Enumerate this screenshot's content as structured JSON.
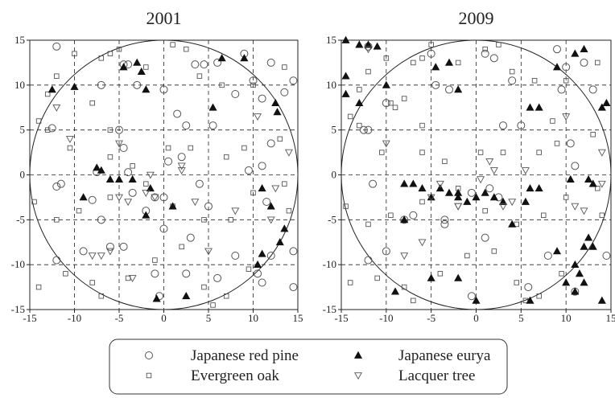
{
  "chart_data": [
    {
      "type": "scatter",
      "title": "2001",
      "xlim": [
        -15,
        15
      ],
      "ylim": [
        -15,
        15
      ],
      "xticks": [
        -15,
        -10,
        -5,
        0,
        5,
        10,
        15
      ],
      "yticks": [
        -15,
        -10,
        -5,
        0,
        5,
        10,
        15
      ],
      "grid": true,
      "series": [
        {
          "name": "Japanese red pine",
          "marker": "circle",
          "color": "#555",
          "x": [
            -12,
            -5,
            -12.5,
            -4.5,
            -4,
            3.5,
            4.5,
            6,
            9,
            -7,
            -3,
            0,
            1.5,
            2.5,
            5.5,
            8,
            10,
            12,
            14.5,
            11,
            13.5,
            -11.5,
            -12,
            -4.5,
            -4,
            -7.5,
            -8,
            -3.5,
            0.5,
            2,
            4,
            5,
            9.5,
            11,
            11.5,
            12,
            -12,
            -9,
            -7,
            -6,
            -4.5,
            -2,
            -1,
            -0.5,
            0,
            3,
            2.5,
            6,
            8,
            10.5,
            11,
            12,
            14.5,
            14.5,
            0,
            -1
          ],
          "y": [
            14.3,
            5,
            5.2,
            12.3,
            12.3,
            12.3,
            12.3,
            12.5,
            13.5,
            10,
            10,
            9.5,
            6.8,
            5.5,
            5.5,
            9,
            10.5,
            12.5,
            10.5,
            8.5,
            9.2,
            -1,
            -1.3,
            3,
            0.3,
            0.3,
            -2.8,
            -2,
            1.5,
            2,
            -1,
            -3.5,
            0.5,
            1,
            -3,
            3.5,
            -9.5,
            -8.5,
            -5,
            -8,
            -8,
            -4,
            -11,
            -13.5,
            -6,
            -7,
            -11,
            -11.5,
            -9,
            -11,
            -12,
            -9,
            -12.5,
            -8.5,
            -2.5,
            -2.5
          ]
        },
        {
          "name": "Evergreen oak",
          "marker": "square",
          "color": "#555",
          "x": [
            -13,
            -12,
            -10,
            -8,
            -6,
            -5,
            -7,
            -2,
            1,
            2.5,
            4,
            6.5,
            10,
            13.5,
            -14,
            -13,
            -10.5,
            -6,
            -6,
            -3.5,
            3,
            0.5,
            7,
            9,
            13,
            -14.5,
            -12,
            -9.5,
            -6,
            -2,
            1,
            4.5,
            7.5,
            10,
            13.5,
            -14,
            -11,
            -8,
            -4,
            -1,
            2,
            4.5,
            7,
            9.5,
            14,
            -7,
            5.5
          ],
          "y": [
            9,
            11,
            13.5,
            8,
            13.5,
            14,
            13,
            12,
            14.5,
            14,
            11,
            10,
            10,
            12,
            6,
            5,
            3,
            5,
            2,
            1,
            3,
            3,
            2,
            3,
            4,
            -3,
            -5,
            -4,
            -2.5,
            -1,
            -3.5,
            -5,
            -5,
            -2,
            -1,
            -12.5,
            -11,
            -12,
            -11.5,
            -9.5,
            -8,
            -12.5,
            -13.5,
            -10.5,
            -4,
            -13.5,
            -14.5
          ]
        },
        {
          "name": "Japanese eurya",
          "marker": "up",
          "color": "#111",
          "x": [
            -12.5,
            -10,
            -4.5,
            -3,
            -2.5,
            -2,
            6.5,
            9,
            12.5,
            12.7,
            5.5,
            -7.5,
            -7,
            -6,
            -5,
            -3.5,
            -1.5,
            -9,
            -2,
            -0.8,
            2.5,
            1,
            11,
            12,
            11,
            13,
            13.5,
            10.5
          ],
          "y": [
            9.5,
            9.8,
            12,
            12.5,
            11.5,
            9.5,
            13,
            13,
            8,
            7,
            7.5,
            0.8,
            0.5,
            -0.5,
            -0.5,
            -0.5,
            -1.5,
            -2.5,
            -4.5,
            -13.8,
            -13.5,
            -3.5,
            -1.5,
            -3.5,
            -8.8,
            -7.5,
            -6,
            -10
          ]
        },
        {
          "name": "Lacquer tree",
          "marker": "down",
          "color": "#555",
          "x": [
            -12,
            -10.5,
            -5,
            -5,
            -4,
            -1.5,
            -2,
            -3.5,
            -7,
            -8,
            -6,
            2,
            2,
            3.5,
            5,
            10.5,
            12.5,
            14,
            12,
            8,
            -1
          ],
          "y": [
            7.5,
            4,
            3.5,
            -2.5,
            -3,
            0,
            -2,
            -11.5,
            -9,
            -9,
            -8.5,
            1,
            0.5,
            -3,
            -8.5,
            6.5,
            -1.5,
            2.5,
            -5,
            -4,
            -2.5
          ]
        }
      ]
    },
    {
      "type": "scatter",
      "title": "2009",
      "xlim": [
        -15,
        15
      ],
      "ylim": [
        -15,
        15
      ],
      "xticks": [
        -15,
        -10,
        -5,
        0,
        5,
        10,
        15
      ],
      "yticks": [
        -15,
        -10,
        -5,
        0,
        5,
        10,
        15
      ],
      "grid": true,
      "series": [
        {
          "marker": "circle",
          "color": "#555",
          "x": [
            -12,
            -5,
            1,
            2,
            4,
            9,
            10,
            12,
            13,
            -4.5,
            -3,
            -12,
            -12.5,
            -10,
            3,
            5,
            9.5,
            -11.5,
            -7,
            -3.5,
            1.5,
            -0.5,
            2.5,
            10.5,
            11,
            -10,
            -8,
            -3.5,
            1,
            5.8,
            8,
            11,
            14.5,
            -0.5,
            -12
          ],
          "y": [
            14.3,
            13.5,
            13.5,
            13,
            10.5,
            14,
            12,
            12.5,
            9.5,
            10,
            9.5,
            5,
            5,
            8,
            5.5,
            5.5,
            9.5,
            -1,
            -4.5,
            -5,
            -1.5,
            -2,
            -2.5,
            3.5,
            1,
            -8.5,
            -5,
            -5.5,
            -7,
            -12.5,
            -9,
            -13,
            -9,
            -13.5,
            -9.5
          ]
        },
        {
          "marker": "square",
          "color": "#555",
          "x": [
            -13,
            -12,
            -10,
            -8,
            -6,
            -5,
            -7,
            -2,
            1,
            2.5,
            4,
            6.5,
            10,
            13.5,
            -14,
            -13,
            -10.5,
            -6,
            -6,
            -3.5,
            3,
            0.5,
            7,
            9,
            13,
            -14.5,
            -12,
            -9.5,
            -6,
            -2,
            1,
            4.5,
            7.5,
            10,
            13.5,
            -14,
            -11,
            -8,
            -4,
            -1,
            2,
            4.5,
            7,
            9.5,
            14,
            -7,
            5.5,
            -9.5,
            -9,
            8.5
          ],
          "y": [
            9.5,
            11.5,
            13,
            8.5,
            13,
            14.5,
            12.5,
            12.5,
            14,
            14.5,
            11.5,
            10.5,
            10.5,
            12.5,
            6.5,
            5.5,
            2.5,
            5.5,
            2.5,
            1.5,
            2.5,
            2.5,
            2.5,
            3.5,
            4.5,
            -3.5,
            -5.5,
            -4.5,
            -3,
            -1.5,
            -4,
            -5.5,
            -4.5,
            -2.5,
            -1.5,
            -12,
            -11.5,
            -12.5,
            -11,
            -9,
            -8.5,
            -12,
            -13.5,
            -11,
            -4.5,
            -14,
            -14,
            8,
            7.5,
            6
          ]
        },
        {
          "marker": "up",
          "color": "#111",
          "x": [
            -14.5,
            -13,
            -12,
            -11,
            -14.5,
            -14.5,
            -13,
            -10,
            -4.5,
            -3,
            -2,
            6,
            7,
            9,
            11,
            12,
            14.5,
            14,
            -8,
            -7,
            -6,
            -5,
            -4,
            -3,
            -2,
            -1,
            0,
            1,
            2,
            3,
            4,
            5.5,
            -2,
            -8,
            -9,
            -5,
            -2,
            0,
            6,
            10,
            11,
            11.5,
            12,
            12.5,
            13,
            11,
            12,
            14,
            9,
            6,
            7,
            10.5,
            12.5,
            13
          ],
          "y": [
            15,
            14.5,
            14.5,
            14.3,
            11,
            9,
            8,
            10,
            12,
            12.5,
            9.5,
            7.5,
            7.5,
            12,
            13.5,
            14,
            8,
            7.5,
            -1,
            -1,
            -1.5,
            -2.5,
            -1.5,
            -2,
            -2,
            -3,
            -2.5,
            -2,
            -2.5,
            -3,
            -5.5,
            -3,
            -2.5,
            -5,
            -13,
            -11.5,
            -11.5,
            -14,
            -14,
            -12,
            -10,
            -11,
            -8,
            -7,
            -8,
            -13,
            -12,
            -14,
            -8.5,
            -1.5,
            -1.5,
            -0.5,
            -0.5,
            -1
          ]
        },
        {
          "marker": "down",
          "color": "#555",
          "x": [
            -12,
            -10,
            -4,
            -5,
            -2,
            1.5,
            2,
            0.5,
            3,
            4,
            -6,
            -8,
            10,
            14,
            12,
            14,
            11,
            5.5,
            -2
          ],
          "y": [
            14,
            3.5,
            -1,
            -2.5,
            -3.5,
            1.5,
            0.5,
            -0.5,
            -3.5,
            -3,
            -7.5,
            -9,
            6.5,
            2.5,
            -4,
            -1,
            -3.5,
            0.5,
            -3.5
          ]
        }
      ]
    }
  ]
}
